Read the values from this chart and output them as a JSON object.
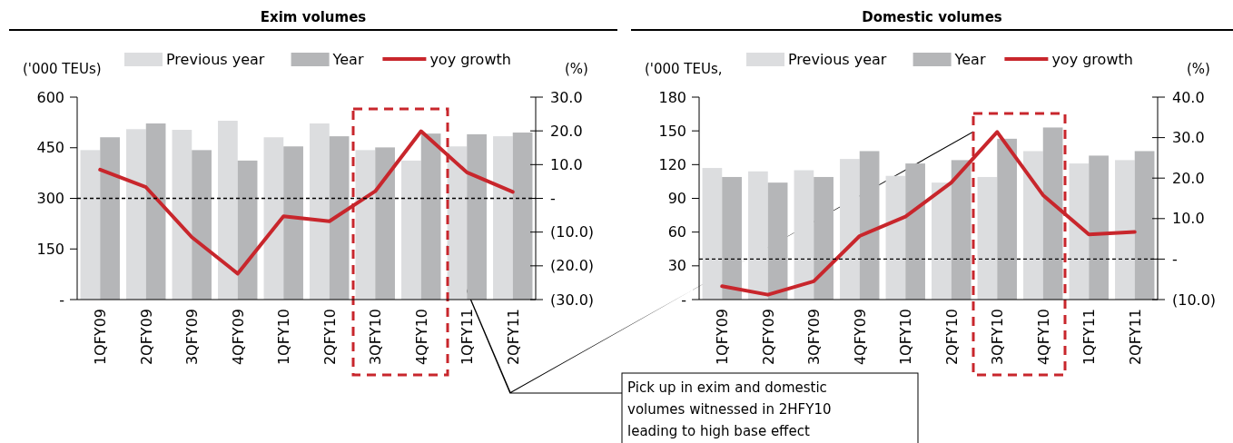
{
  "chart_data": [
    {
      "type": "bar",
      "title": "Exim volumes",
      "ylabel": "('000 TEUs)",
      "y2label": "(%)",
      "categories": [
        "1QFY09",
        "2QFY09",
        "3QFY09",
        "4QFY09",
        "1QFY10",
        "2QFY10",
        "3QFY10",
        "4QFY10",
        "1QFY11",
        "2QFY11"
      ],
      "series": [
        {
          "name": "Previous year",
          "color": "#dcdddf",
          "values": [
            443,
            505,
            503,
            530,
            481,
            522,
            443,
            412,
            454,
            484
          ]
        },
        {
          "name": "Year",
          "color": "#b5b6b8",
          "values": [
            481,
            522,
            443,
            412,
            454,
            484,
            451,
            492,
            490,
            495
          ]
        },
        {
          "name": "yoy growth",
          "type": "line",
          "axis": "y2",
          "color": "#c8262c",
          "values": [
            8.5,
            3.3,
            -11.5,
            -22.3,
            -5.3,
            -6.8,
            2.1,
            19.9,
            7.7,
            1.9
          ]
        }
      ],
      "ylim": [
        0,
        600
      ],
      "yticks": [
        {
          "value": 0,
          "label": "-"
        },
        150,
        300,
        450,
        600
      ],
      "y2lim": [
        -30,
        30
      ],
      "y2ticks": [
        {
          "value": -30,
          "label": "(30.0)"
        },
        {
          "value": -20,
          "label": "(20.0)"
        },
        {
          "value": -10,
          "label": "(10.0)"
        },
        {
          "value": 0,
          "label": "-"
        },
        {
          "value": 10,
          "label": "10.0"
        },
        {
          "value": 20,
          "label": "20.0"
        },
        {
          "value": 30,
          "label": "30.0"
        }
      ],
      "ref_lines": [
        {
          "axis": "y2",
          "value": 0,
          "color": "#000000",
          "line_style": "dashed"
        }
      ],
      "legend": "top",
      "grid": false
    },
    {
      "type": "bar",
      "title": "Domestic volumes",
      "ylabel": "('000 TEUs,",
      "y2label": "(%)",
      "categories": [
        "1QFY09",
        "2QFY09",
        "3QFY09",
        "4QFY09",
        "1QFY10",
        "2QFY10",
        "3QFY10",
        "4QFY10",
        "1QFY11",
        "2QFY11"
      ],
      "series": [
        {
          "name": "Previous year",
          "color": "#dcdddf",
          "values": [
            117,
            114,
            115,
            125,
            110,
            104,
            109,
            132,
            121,
            124
          ]
        },
        {
          "name": "Year",
          "color": "#b5b6b8",
          "values": [
            109,
            104,
            109,
            132,
            121,
            124,
            143,
            153,
            128,
            132
          ]
        },
        {
          "name": "yoy growth",
          "type": "line",
          "axis": "y2",
          "color": "#c8262c",
          "values": [
            -6.7,
            -8.8,
            -5.5,
            5.7,
            10.5,
            18.9,
            31.4,
            15.8,
            6.1,
            6.7
          ]
        }
      ],
      "ylim": [
        0,
        180
      ],
      "yticks": [
        {
          "value": 0,
          "label": "-"
        },
        30,
        60,
        90,
        120,
        150,
        180
      ],
      "y2lim": [
        -10,
        40
      ],
      "y2ticks": [
        {
          "value": -10,
          "label": "(10.0)"
        },
        {
          "value": 0,
          "label": "-"
        },
        {
          "value": 10,
          "label": "10.0"
        },
        {
          "value": 20,
          "label": "20.0"
        },
        {
          "value": 30,
          "label": "30.0"
        },
        {
          "value": 40,
          "label": "40.0"
        }
      ],
      "ref_lines": [
        {
          "axis": "y2",
          "value": 0,
          "color": "#000000",
          "line_style": "dashed"
        }
      ],
      "annotations": [
        "Pick up in exim and domestic volumes witnessed in 2HFY10 leading to high base effect"
      ],
      "legend": "top",
      "grid": false
    }
  ]
}
